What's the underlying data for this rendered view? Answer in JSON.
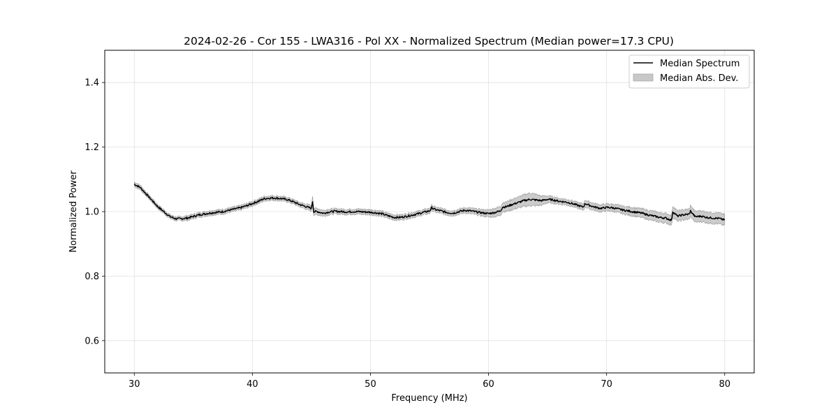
{
  "chart_data": {
    "type": "line",
    "title": "2024-02-26 - Cor 155 - LWA316 - Pol XX - Normalized Spectrum (Median power=17.3 CPU)",
    "xlabel": "Frequency (MHz)",
    "ylabel": "Normalized Power",
    "xlim": [
      27.5,
      82.5
    ],
    "ylim": [
      0.5,
      1.5
    ],
    "xticks": [
      30,
      40,
      50,
      60,
      70,
      80
    ],
    "yticks": [
      0.6,
      0.8,
      1.0,
      1.2,
      1.4
    ],
    "grid": true,
    "legend_position": "top-right",
    "series": [
      {
        "name": "Median Spectrum",
        "kind": "line",
        "color": "#000000",
        "x": [
          30,
          30.5,
          31,
          31.5,
          32,
          32.5,
          33,
          33.5,
          34,
          34.5,
          35,
          35.5,
          36,
          36.5,
          37,
          37.5,
          38,
          38.5,
          39,
          39.5,
          40,
          40.5,
          41,
          41.5,
          42,
          42.5,
          43,
          43.5,
          44,
          44.5,
          45,
          45.1,
          45.2,
          45.5,
          46,
          46.5,
          47,
          47.5,
          48,
          48.5,
          49,
          49.5,
          50,
          50.5,
          51,
          51.5,
          52,
          52.5,
          53,
          53.5,
          54,
          54.5,
          55,
          55.2,
          55.5,
          56,
          56.5,
          57,
          57.5,
          58,
          58.5,
          59,
          59.5,
          60,
          60.5,
          61,
          61.2,
          61.5,
          62,
          62.5,
          63,
          63.5,
          64,
          64.5,
          65,
          65.5,
          66,
          66.5,
          67,
          67.5,
          68,
          68.2,
          68.5,
          69,
          69.5,
          70,
          70.5,
          71,
          71.5,
          72,
          72.5,
          73,
          73.5,
          74,
          74.5,
          75,
          75.5,
          75.6,
          76,
          76.5,
          77,
          77.1,
          77.5,
          78,
          78.5,
          79,
          79.5,
          80
        ],
        "values": [
          1.085,
          1.075,
          1.055,
          1.035,
          1.015,
          1.0,
          0.985,
          0.978,
          0.978,
          0.98,
          0.985,
          0.99,
          0.993,
          0.996,
          0.998,
          1.0,
          1.004,
          1.008,
          1.012,
          1.018,
          1.025,
          1.032,
          1.04,
          1.042,
          1.042,
          1.04,
          1.037,
          1.03,
          1.022,
          1.016,
          1.01,
          1.032,
          1.0,
          1.0,
          0.995,
          0.999,
          1.001,
          1.0,
          0.999,
          1.0,
          1.0,
          0.999,
          0.998,
          0.996,
          0.993,
          0.987,
          0.982,
          0.982,
          0.985,
          0.989,
          0.993,
          0.998,
          1.002,
          1.012,
          1.006,
          1.002,
          0.997,
          0.995,
          1.0,
          1.004,
          1.002,
          0.999,
          0.996,
          0.994,
          0.997,
          1.002,
          1.014,
          1.015,
          1.022,
          1.028,
          1.034,
          1.038,
          1.036,
          1.034,
          1.038,
          1.036,
          1.032,
          1.03,
          1.026,
          1.02,
          1.014,
          1.025,
          1.02,
          1.014,
          1.01,
          1.013,
          1.012,
          1.008,
          1.004,
          1.001,
          0.998,
          0.995,
          0.99,
          0.986,
          0.982,
          0.98,
          0.973,
          1.0,
          0.986,
          0.99,
          0.992,
          1.002,
          0.984,
          0.986,
          0.982,
          0.98,
          0.979,
          0.974
        ],
        "mad_lower": [
          1.078,
          1.068,
          1.049,
          1.029,
          1.009,
          0.994,
          0.979,
          0.972,
          0.972,
          0.973,
          0.978,
          0.983,
          0.986,
          0.989,
          0.991,
          0.993,
          0.997,
          1.001,
          1.005,
          1.011,
          1.018,
          1.025,
          1.033,
          1.035,
          1.035,
          1.033,
          1.03,
          1.023,
          1.015,
          1.008,
          1.001,
          1.015,
          0.99,
          0.99,
          0.986,
          0.99,
          0.993,
          0.992,
          0.991,
          0.992,
          0.992,
          0.991,
          0.99,
          0.988,
          0.985,
          0.979,
          0.974,
          0.974,
          0.977,
          0.981,
          0.985,
          0.99,
          0.994,
          1.004,
          0.998,
          0.994,
          0.989,
          0.987,
          0.992,
          0.996,
          0.993,
          0.99,
          0.986,
          0.983,
          0.984,
          0.988,
          1.0,
          1.0,
          1.006,
          1.011,
          1.016,
          1.018,
          1.018,
          1.02,
          1.027,
          1.026,
          1.023,
          1.021,
          1.017,
          1.011,
          1.004,
          1.014,
          1.009,
          1.003,
          0.999,
          1.002,
          1.001,
          0.996,
          0.992,
          0.988,
          0.985,
          0.981,
          0.976,
          0.971,
          0.967,
          0.965,
          0.958,
          0.983,
          0.97,
          0.974,
          0.976,
          0.985,
          0.967,
          0.969,
          0.965,
          0.963,
          0.962,
          0.957
        ],
        "mad_upper": [
          1.092,
          1.082,
          1.061,
          1.041,
          1.021,
          1.006,
          0.991,
          0.984,
          0.984,
          0.987,
          0.992,
          0.997,
          1.0,
          1.003,
          1.005,
          1.007,
          1.011,
          1.015,
          1.019,
          1.025,
          1.032,
          1.039,
          1.047,
          1.049,
          1.049,
          1.047,
          1.044,
          1.037,
          1.029,
          1.024,
          1.019,
          1.049,
          1.01,
          1.01,
          1.004,
          1.008,
          1.009,
          1.008,
          1.007,
          1.008,
          1.008,
          1.007,
          1.006,
          1.004,
          1.001,
          0.995,
          0.99,
          0.99,
          0.993,
          0.997,
          1.001,
          1.006,
          1.01,
          1.02,
          1.014,
          1.01,
          1.005,
          1.003,
          1.008,
          1.012,
          1.011,
          1.008,
          1.006,
          1.005,
          1.01,
          1.016,
          1.028,
          1.03,
          1.038,
          1.045,
          1.052,
          1.058,
          1.054,
          1.048,
          1.049,
          1.046,
          1.041,
          1.039,
          1.035,
          1.029,
          1.024,
          1.036,
          1.031,
          1.025,
          1.021,
          1.024,
          1.023,
          1.02,
          1.016,
          1.014,
          1.011,
          1.009,
          1.004,
          1.001,
          0.997,
          0.995,
          0.988,
          1.017,
          1.002,
          1.006,
          1.008,
          1.019,
          1.001,
          1.003,
          0.999,
          0.997,
          0.996,
          0.991
        ]
      }
    ],
    "legend": [
      {
        "label": "Median Spectrum",
        "kind": "line",
        "color": "#000000"
      },
      {
        "label": "Median Abs. Dev.",
        "kind": "patch",
        "color": "#c8c8c8"
      }
    ]
  }
}
